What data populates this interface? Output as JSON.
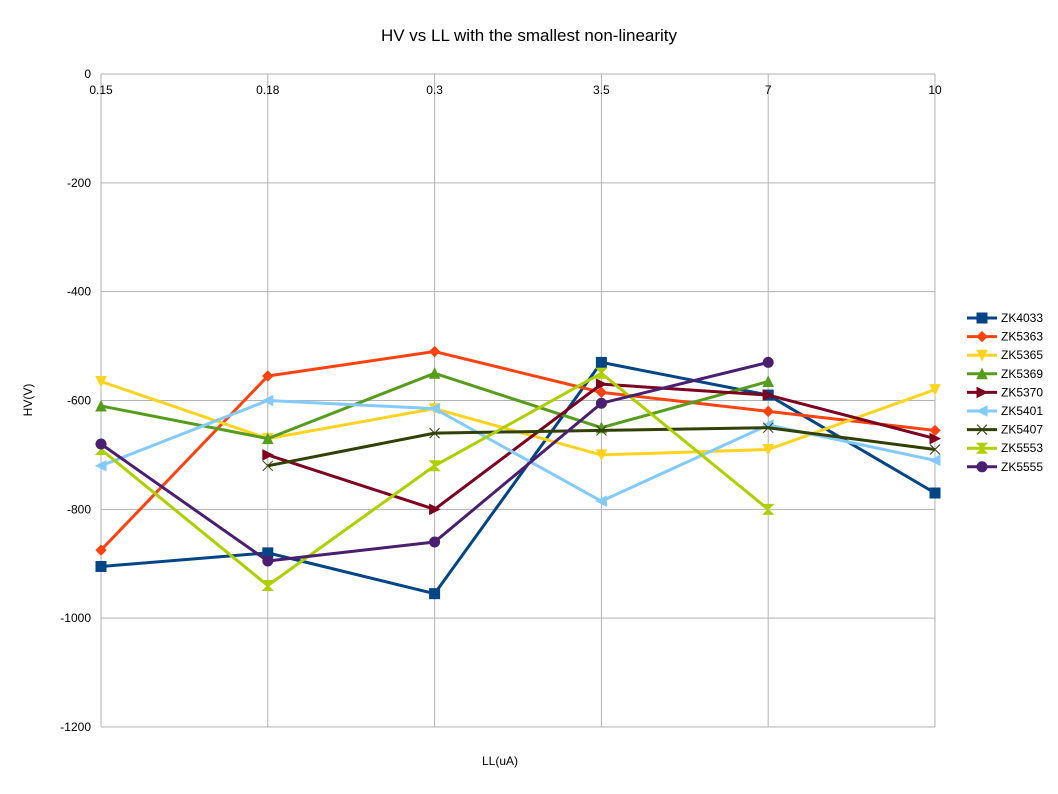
{
  "chart_data": {
    "type": "line",
    "title": "HV vs LL with the smallest non-linearity",
    "xlabel": "LL(uA)",
    "ylabel": "HV(V)",
    "categories": [
      "0.15",
      "0.18",
      "0.3",
      "3.5",
      "7",
      "10"
    ],
    "ylim": [
      -1200,
      0
    ],
    "yticks": [
      0,
      -200,
      -400,
      -600,
      -800,
      -1000,
      -1200
    ],
    "grid": true,
    "legend_position": "right",
    "series": [
      {
        "name": "ZK4033",
        "color": "#004586",
        "marker": "square",
        "values": [
          -905,
          -880,
          -955,
          -530,
          -590,
          -770
        ]
      },
      {
        "name": "ZK5363",
        "color": "#ff420e",
        "marker": "diamond",
        "values": [
          -875,
          -555,
          -510,
          -585,
          -620,
          -655
        ]
      },
      {
        "name": "ZK5365",
        "color": "#ffd320",
        "marker": "triangle-down",
        "values": [
          -565,
          -670,
          -615,
          -700,
          -690,
          -580
        ]
      },
      {
        "name": "ZK5369",
        "color": "#579d1c",
        "marker": "triangle-up",
        "values": [
          -610,
          -670,
          -550,
          -650,
          -565,
          null
        ]
      },
      {
        "name": "ZK5370",
        "color": "#7e0021",
        "marker": "triangle-right",
        "values": [
          null,
          -700,
          -800,
          -570,
          -590,
          -670
        ]
      },
      {
        "name": "ZK5401",
        "color": "#83caff",
        "marker": "triangle-left",
        "values": [
          -720,
          -600,
          -615,
          -785,
          -645,
          -710
        ]
      },
      {
        "name": "ZK5407",
        "color": "#314004",
        "marker": "bowtie",
        "values": [
          null,
          -720,
          -660,
          -655,
          -650,
          -690
        ]
      },
      {
        "name": "ZK5553",
        "color": "#aecf00",
        "marker": "hourglass",
        "values": [
          -690,
          -940,
          -720,
          -550,
          -800,
          null
        ]
      },
      {
        "name": "ZK5555",
        "color": "#4b1f6f",
        "marker": "circle",
        "values": [
          -680,
          -895,
          -860,
          -605,
          -530,
          null
        ]
      }
    ]
  }
}
